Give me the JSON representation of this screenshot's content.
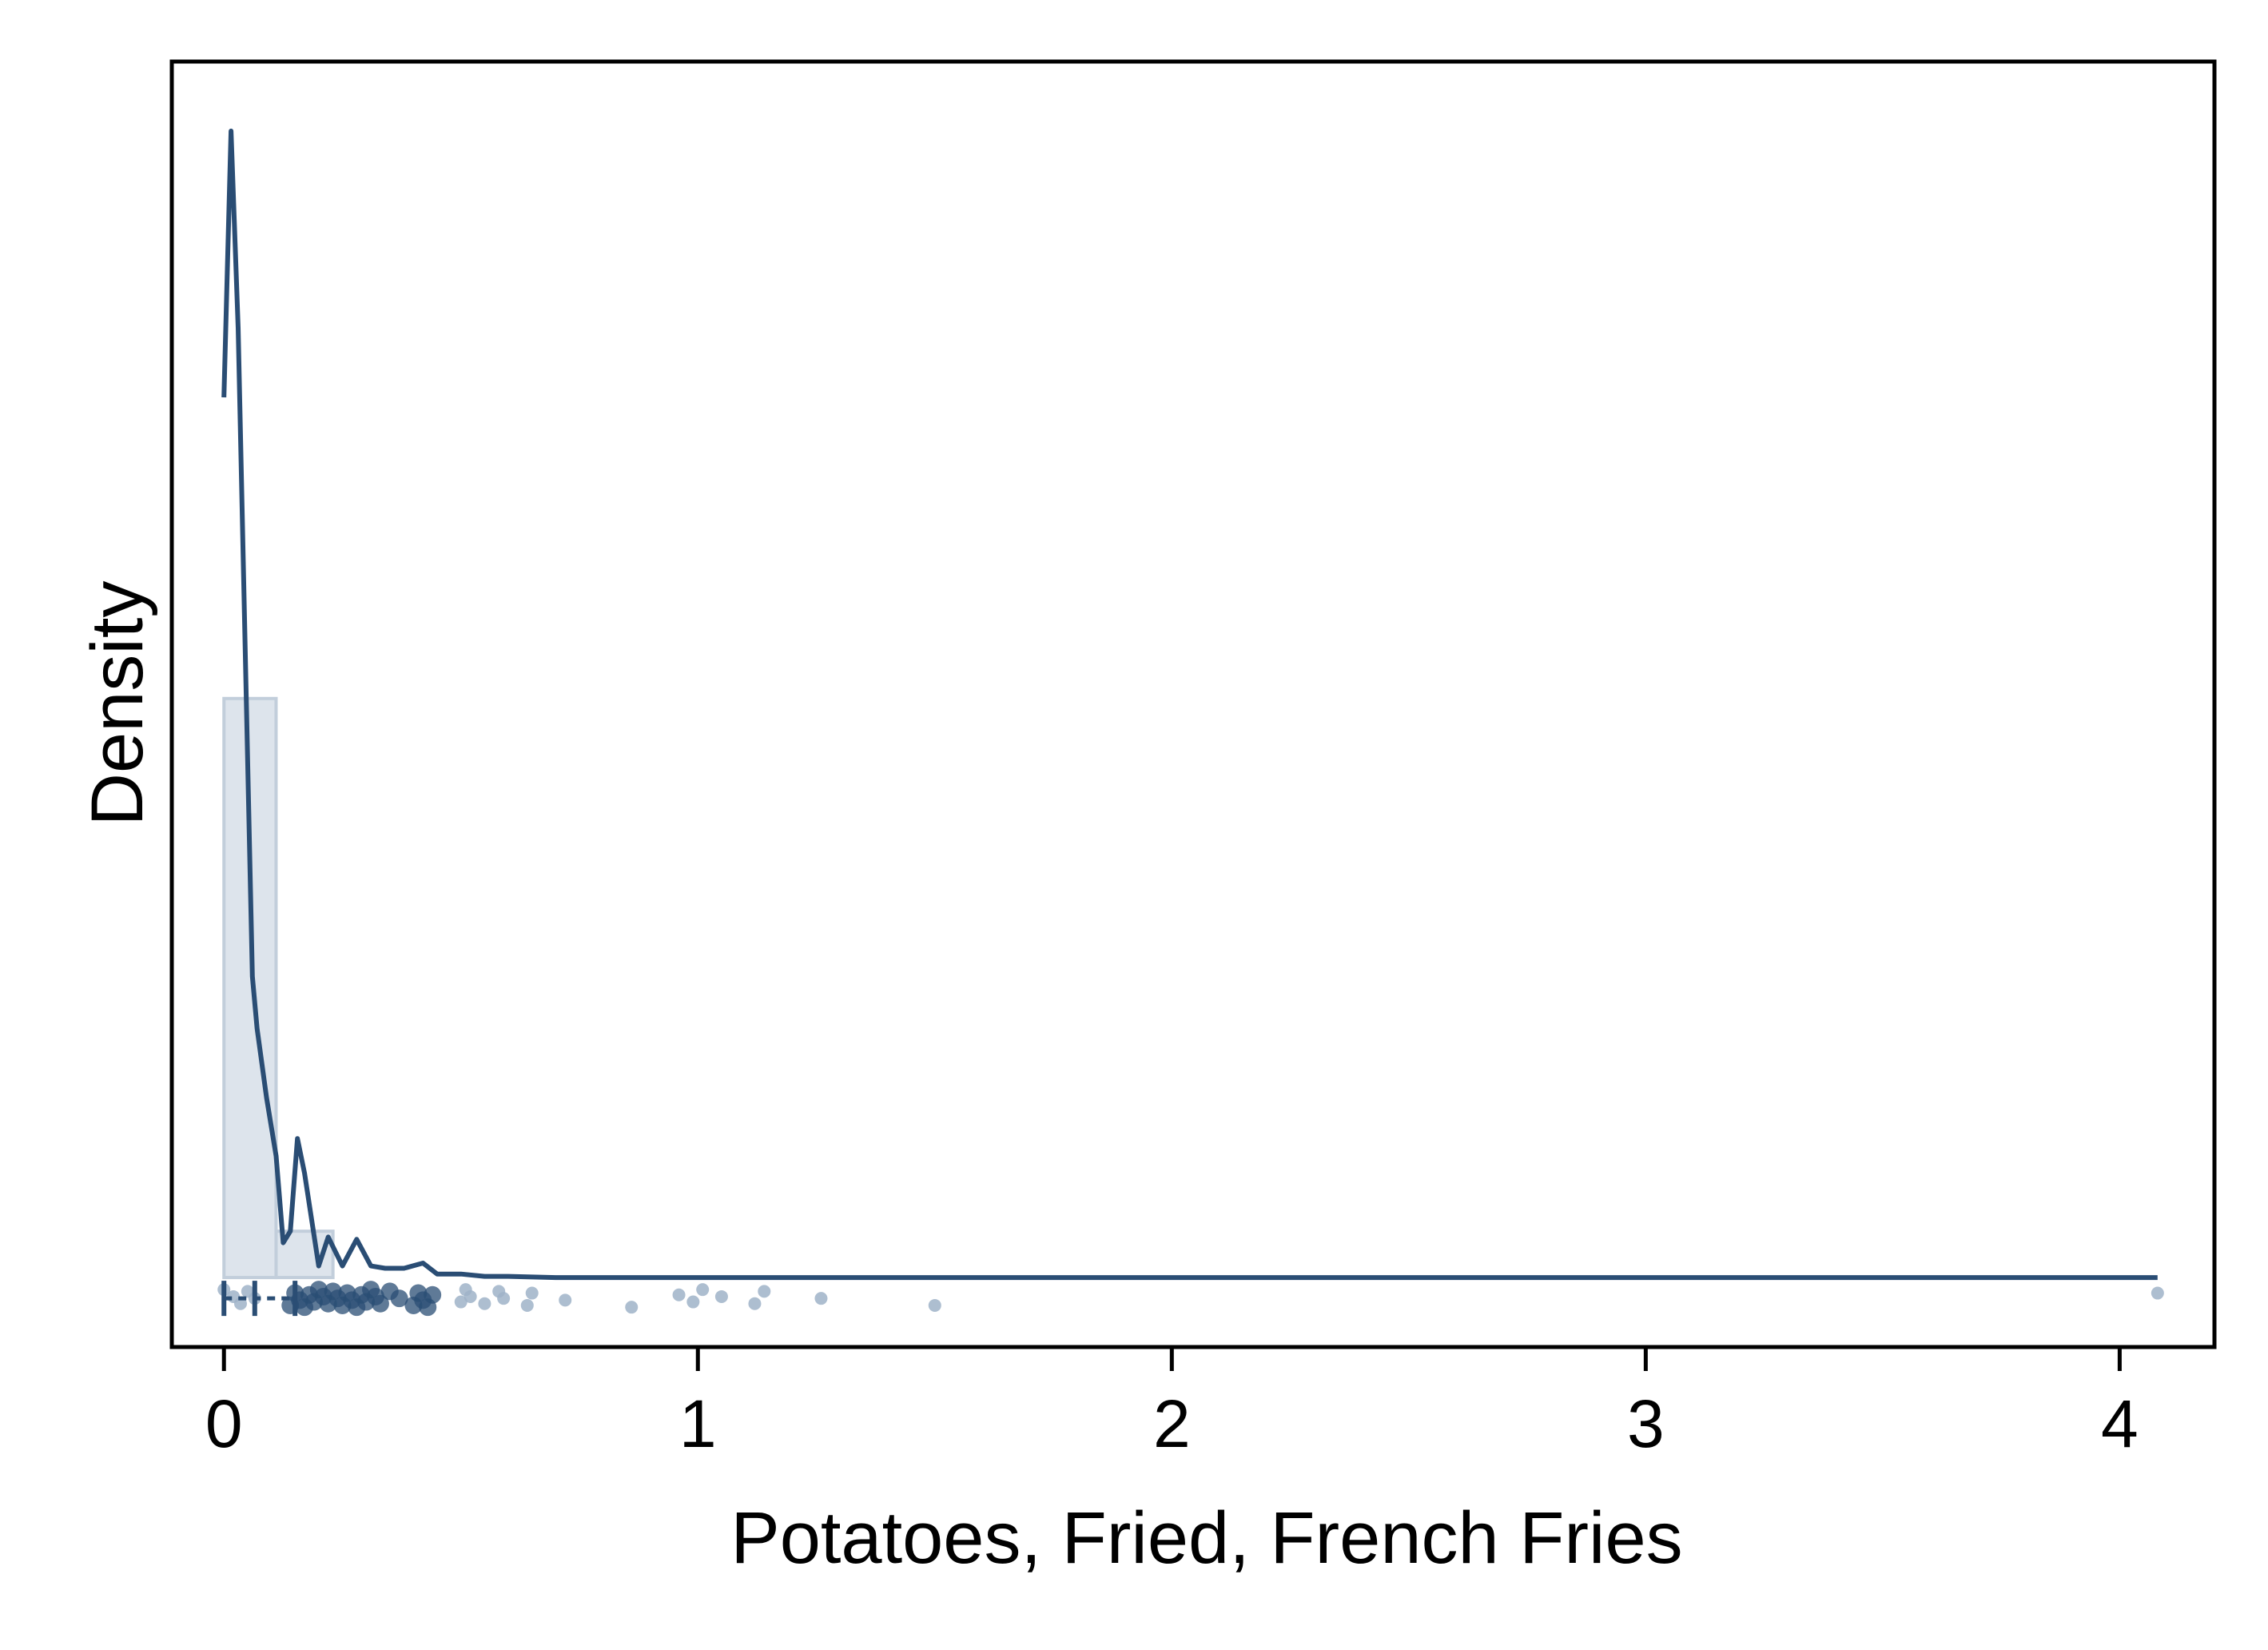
{
  "chart_data": {
    "type": "histogram+density+rug",
    "title": "",
    "xlabel": "Potatoes, Fried, French Fries",
    "ylabel": "Density",
    "xlim": [
      -0.11,
      4.2
    ],
    "ylim": [
      -0.06,
      1.05
    ],
    "x_ticks": [
      0,
      1,
      2,
      3,
      4
    ],
    "y_ticks": [],
    "grid": false,
    "legend": "none",
    "colors": {
      "line": "#2a4d74",
      "hist_fill": "#dde4ec",
      "hist_edge": "#c2cedb",
      "points": "#2a4d74",
      "points_light": "#9fb3c8"
    },
    "histogram": {
      "bins": [
        {
          "x0": 0.0,
          "x1": 0.11,
          "density": 0.5
        },
        {
          "x0": 0.11,
          "x1": 0.23,
          "density": 0.04
        },
        {
          "x0": 0.23,
          "x1": 4.2,
          "density": 0.0
        }
      ]
    },
    "density_curve": {
      "x": [
        0.0,
        0.015,
        0.03,
        0.06,
        0.07,
        0.09,
        0.11,
        0.125,
        0.14,
        0.155,
        0.17,
        0.2,
        0.22,
        0.25,
        0.28,
        0.31,
        0.34,
        0.38,
        0.42,
        0.45,
        0.5,
        0.55,
        0.6,
        0.7,
        0.8,
        1.0,
        1.2,
        1.5,
        2.0,
        3.0,
        4.08
      ],
      "y": [
        0.76,
        0.99,
        0.82,
        0.26,
        0.215,
        0.155,
        0.105,
        0.03,
        0.04,
        0.12,
        0.09,
        0.01,
        0.035,
        0.01,
        0.033,
        0.01,
        0.008,
        0.008,
        0.0125,
        0.003,
        0.003,
        0.001,
        0.001,
        0.0,
        0.0,
        0.0,
        0.0,
        0.0,
        0.0,
        0.0,
        0.0
      ]
    },
    "rug_points": [
      0.0,
      0.02,
      0.035,
      0.05,
      0.065,
      0.14,
      0.15,
      0.16,
      0.17,
      0.18,
      0.19,
      0.2,
      0.21,
      0.22,
      0.23,
      0.24,
      0.25,
      0.26,
      0.27,
      0.28,
      0.29,
      0.3,
      0.31,
      0.32,
      0.33,
      0.35,
      0.37,
      0.4,
      0.41,
      0.42,
      0.43,
      0.44,
      0.5,
      0.51,
      0.52,
      0.55,
      0.58,
      0.59,
      0.64,
      0.65,
      0.72,
      0.86,
      0.96,
      0.99,
      1.01,
      1.05,
      1.12,
      1.14,
      1.26,
      1.5,
      4.08
    ]
  }
}
